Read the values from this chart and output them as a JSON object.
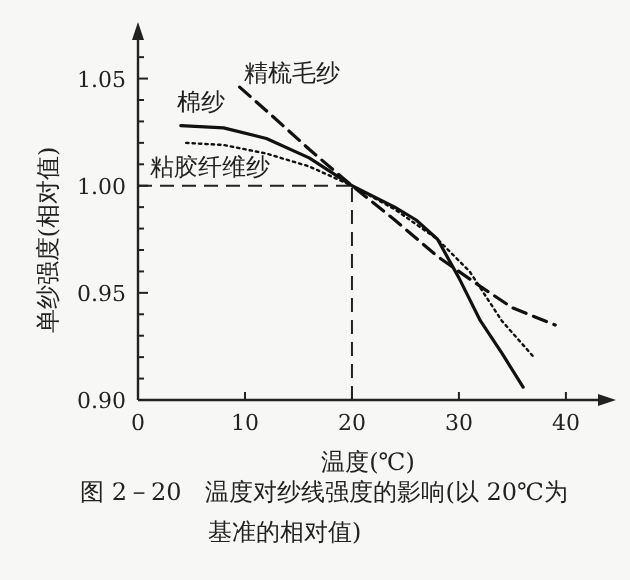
{
  "chart_data": {
    "type": "line",
    "xlabel": "温度(℃)",
    "ylabel": "单纱强度(相对值)",
    "xlim": [
      0,
      43
    ],
    "ylim": [
      0.9,
      1.068
    ],
    "xticks": [
      0,
      10,
      20,
      30,
      40
    ],
    "yticks": [
      {
        "value": 0.9,
        "label": "0.90"
      },
      {
        "value": 0.95,
        "label": "0.95"
      },
      {
        "value": 1.0,
        "label": "1.00"
      },
      {
        "value": 1.05,
        "label": "1.05"
      }
    ],
    "grid": false,
    "series": [
      {
        "name": "棉纱",
        "color": "#111111",
        "line_style": "solid",
        "x": [
          4,
          8,
          12,
          16,
          20,
          24,
          26,
          28,
          30,
          32,
          34,
          36
        ],
        "values": [
          1.028,
          1.027,
          1.022,
          1.013,
          1.0,
          0.99,
          0.984,
          0.975,
          0.957,
          0.937,
          0.922,
          0.906
        ]
      },
      {
        "name": "精梳毛纱",
        "color": "#111111",
        "line_style": "dashed",
        "x": [
          9.5,
          12,
          16,
          20,
          24,
          28,
          32,
          35,
          37,
          39
        ],
        "values": [
          1.046,
          1.035,
          1.017,
          1.0,
          0.984,
          0.967,
          0.953,
          0.943,
          0.939,
          0.935
        ]
      },
      {
        "name": "粘胶纤维纱",
        "color": "#111111",
        "line_style": "dotted",
        "x": [
          4.5,
          8,
          12,
          16,
          20,
          24,
          28,
          31,
          34,
          37
        ],
        "values": [
          1.02,
          1.019,
          1.015,
          1.009,
          1.0,
          0.989,
          0.975,
          0.96,
          0.937,
          0.92
        ]
      }
    ],
    "ref_lines": [
      {
        "axis": "y",
        "value": 1.0,
        "line_style": "dashed"
      },
      {
        "axis": "x",
        "value": 20,
        "line_style": "dashed"
      }
    ],
    "annotations": [
      "图 2－20　温度对纱线强度的影响(以 20℃为",
      "基准的相对值)"
    ]
  }
}
